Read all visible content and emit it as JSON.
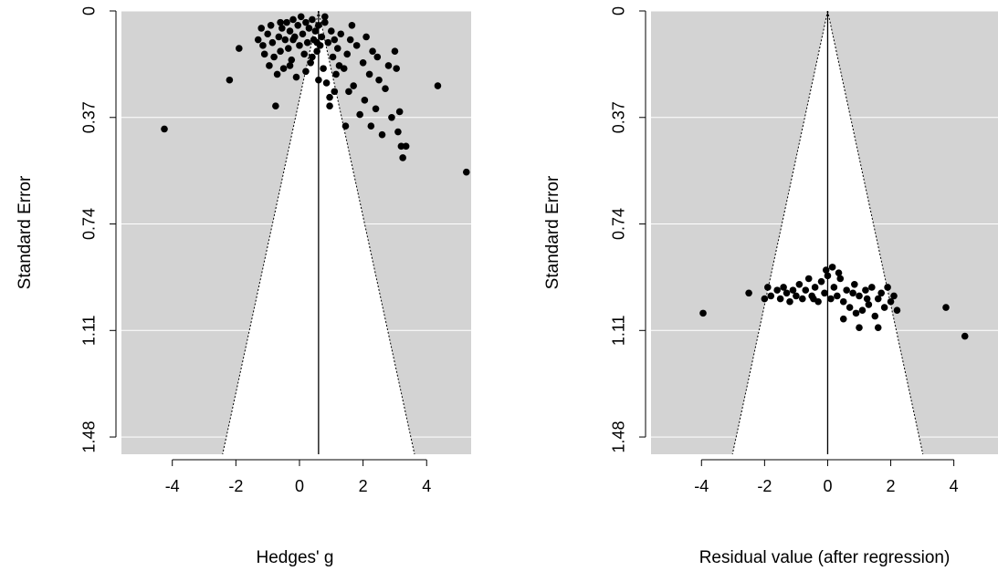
{
  "chart_data": [
    {
      "type": "scatter",
      "title": "",
      "xlabel": "Hedges' g",
      "ylabel": "Standard Error",
      "xlim": [
        -5.6,
        5.4
      ],
      "ylim": [
        0,
        1.54
      ],
      "y_reversed": true,
      "xticks": [
        -4,
        -2,
        0,
        2,
        4
      ],
      "yticks": [
        0,
        0.37,
        0.74,
        1.11,
        1.48
      ],
      "ytick_labels": [
        "0",
        "0.37",
        "0.74",
        "1.11",
        "1.48"
      ],
      "background_color": "#d3d3d3",
      "grid": true,
      "funnel_center": 0.6,
      "funnel_half_width_per_se": 1.96,
      "points": [
        [
          -4.25,
          0.41
        ],
        [
          5.25,
          0.56
        ],
        [
          4.35,
          0.26
        ],
        [
          -2.2,
          0.24
        ],
        [
          -1.9,
          0.13
        ],
        [
          -1.2,
          0.06
        ],
        [
          -1.15,
          0.12
        ],
        [
          -1.1,
          0.15
        ],
        [
          -1.0,
          0.08
        ],
        [
          -0.95,
          0.19
        ],
        [
          -0.9,
          0.05
        ],
        [
          -0.85,
          0.11
        ],
        [
          -0.8,
          0.16
        ],
        [
          -0.75,
          0.33
        ],
        [
          -0.7,
          0.22
        ],
        [
          -0.65,
          0.09
        ],
        [
          -0.6,
          0.14
        ],
        [
          -0.55,
          0.06
        ],
        [
          -0.5,
          0.2
        ],
        [
          -0.45,
          0.1
        ],
        [
          -0.4,
          0.04
        ],
        [
          -0.35,
          0.13
        ],
        [
          -0.3,
          0.07
        ],
        [
          -0.25,
          0.17
        ],
        [
          -0.2,
          0.03
        ],
        [
          -0.15,
          0.09
        ],
        [
          -0.1,
          0.23
        ],
        [
          -0.05,
          0.05
        ],
        [
          0.0,
          0.12
        ],
        [
          0.05,
          0.02
        ],
        [
          0.1,
          0.08
        ],
        [
          0.15,
          0.15
        ],
        [
          0.2,
          0.04
        ],
        [
          0.25,
          0.11
        ],
        [
          0.3,
          0.06
        ],
        [
          0.35,
          0.18
        ],
        [
          0.4,
          0.03
        ],
        [
          0.45,
          0.1
        ],
        [
          0.5,
          0.07
        ],
        [
          0.55,
          0.14
        ],
        [
          0.6,
          0.05
        ],
        [
          0.65,
          0.12
        ],
        [
          0.7,
          0.09
        ],
        [
          0.75,
          0.2
        ],
        [
          0.8,
          0.04
        ],
        [
          0.85,
          0.25
        ],
        [
          0.9,
          0.11
        ],
        [
          0.95,
          0.3
        ],
        [
          1.0,
          0.07
        ],
        [
          1.05,
          0.16
        ],
        [
          1.1,
          0.1
        ],
        [
          1.15,
          0.22
        ],
        [
          1.2,
          0.13
        ],
        [
          1.3,
          0.08
        ],
        [
          1.4,
          0.2
        ],
        [
          1.45,
          0.4
        ],
        [
          1.5,
          0.15
        ],
        [
          1.6,
          0.1
        ],
        [
          1.7,
          0.26
        ],
        [
          1.8,
          0.12
        ],
        [
          1.9,
          0.36
        ],
        [
          2.0,
          0.18
        ],
        [
          2.05,
          0.31
        ],
        [
          2.1,
          0.09
        ],
        [
          2.2,
          0.22
        ],
        [
          2.25,
          0.4
        ],
        [
          2.3,
          0.14
        ],
        [
          2.4,
          0.34
        ],
        [
          2.5,
          0.24
        ],
        [
          2.6,
          0.43
        ],
        [
          2.7,
          0.27
        ],
        [
          2.8,
          0.19
        ],
        [
          2.9,
          0.37
        ],
        [
          3.0,
          0.14
        ],
        [
          3.05,
          0.2
        ],
        [
          3.1,
          0.42
        ],
        [
          3.15,
          0.35
        ],
        [
          3.2,
          0.47
        ],
        [
          3.25,
          0.51
        ],
        [
          3.35,
          0.47
        ],
        [
          -0.3,
          0.19
        ],
        [
          0.2,
          0.21
        ],
        [
          0.6,
          0.24
        ],
        [
          1.25,
          0.19
        ],
        [
          1.65,
          0.05
        ],
        [
          0.4,
          0.16
        ],
        [
          -0.6,
          0.04
        ],
        [
          0.95,
          0.33
        ],
        [
          1.55,
          0.28
        ],
        [
          2.45,
          0.16
        ],
        [
          -1.3,
          0.1
        ],
        [
          0.8,
          0.02
        ],
        [
          -0.2,
          0.1
        ],
        [
          0.55,
          0.11
        ],
        [
          1.1,
          0.28
        ]
      ]
    },
    {
      "type": "scatter",
      "title": "",
      "xlabel": "Residual value (after regression)",
      "ylabel": "Standard Error",
      "xlim": [
        -5.6,
        5.4
      ],
      "ylim": [
        0,
        1.54
      ],
      "y_reversed": true,
      "xticks": [
        -4,
        -2,
        0,
        2,
        4
      ],
      "yticks": [
        0,
        0.37,
        0.74,
        1.11,
        1.48
      ],
      "ytick_labels": [
        "0",
        "0.37",
        "0.74",
        "1.11",
        "1.48"
      ],
      "background_color": "#d3d3d3",
      "grid": true,
      "funnel_center": 0,
      "funnel_half_width_per_se": 1.96,
      "points": [
        [
          -3.95,
          1.05
        ],
        [
          -2.5,
          0.98
        ],
        [
          -2.0,
          1.0
        ],
        [
          -1.9,
          0.96
        ],
        [
          -1.8,
          0.99
        ],
        [
          -1.6,
          0.97
        ],
        [
          -1.5,
          1.0
        ],
        [
          -1.4,
          0.96
        ],
        [
          -1.3,
          0.98
        ],
        [
          -1.2,
          1.01
        ],
        [
          -1.1,
          0.97
        ],
        [
          -1.0,
          0.99
        ],
        [
          -0.9,
          0.95
        ],
        [
          -0.8,
          1.0
        ],
        [
          -0.7,
          0.97
        ],
        [
          -0.6,
          0.93
        ],
        [
          -0.5,
          0.99
        ],
        [
          -0.4,
          0.96
        ],
        [
          -0.3,
          1.01
        ],
        [
          -0.2,
          0.94
        ],
        [
          -0.1,
          0.98
        ],
        [
          0.0,
          0.92
        ],
        [
          0.1,
          1.0
        ],
        [
          0.2,
          0.96
        ],
        [
          0.3,
          0.99
        ],
        [
          0.4,
          0.93
        ],
        [
          0.5,
          1.01
        ],
        [
          0.6,
          0.97
        ],
        [
          0.7,
          1.03
        ],
        [
          0.8,
          0.98
        ],
        [
          0.9,
          1.05
        ],
        [
          1.0,
          0.99
        ],
        [
          1.1,
          1.04
        ],
        [
          1.2,
          0.97
        ],
        [
          1.3,
          1.02
        ],
        [
          1.4,
          0.96
        ],
        [
          1.5,
          1.06
        ],
        [
          1.6,
          1.0
        ],
        [
          1.7,
          0.98
        ],
        [
          1.8,
          1.03
        ],
        [
          1.9,
          0.96
        ],
        [
          2.0,
          1.01
        ],
        [
          2.1,
          0.99
        ],
        [
          2.2,
          1.04
        ],
        [
          3.75,
          1.03
        ],
        [
          4.35,
          1.13
        ],
        [
          0.15,
          0.89
        ],
        [
          -0.05,
          0.9
        ],
        [
          0.35,
          0.91
        ],
        [
          1.0,
          1.1
        ],
        [
          1.6,
          1.1
        ],
        [
          0.5,
          1.07
        ],
        [
          -0.45,
          1.0
        ],
        [
          0.85,
          0.95
        ],
        [
          1.25,
          1.0
        ]
      ]
    }
  ]
}
